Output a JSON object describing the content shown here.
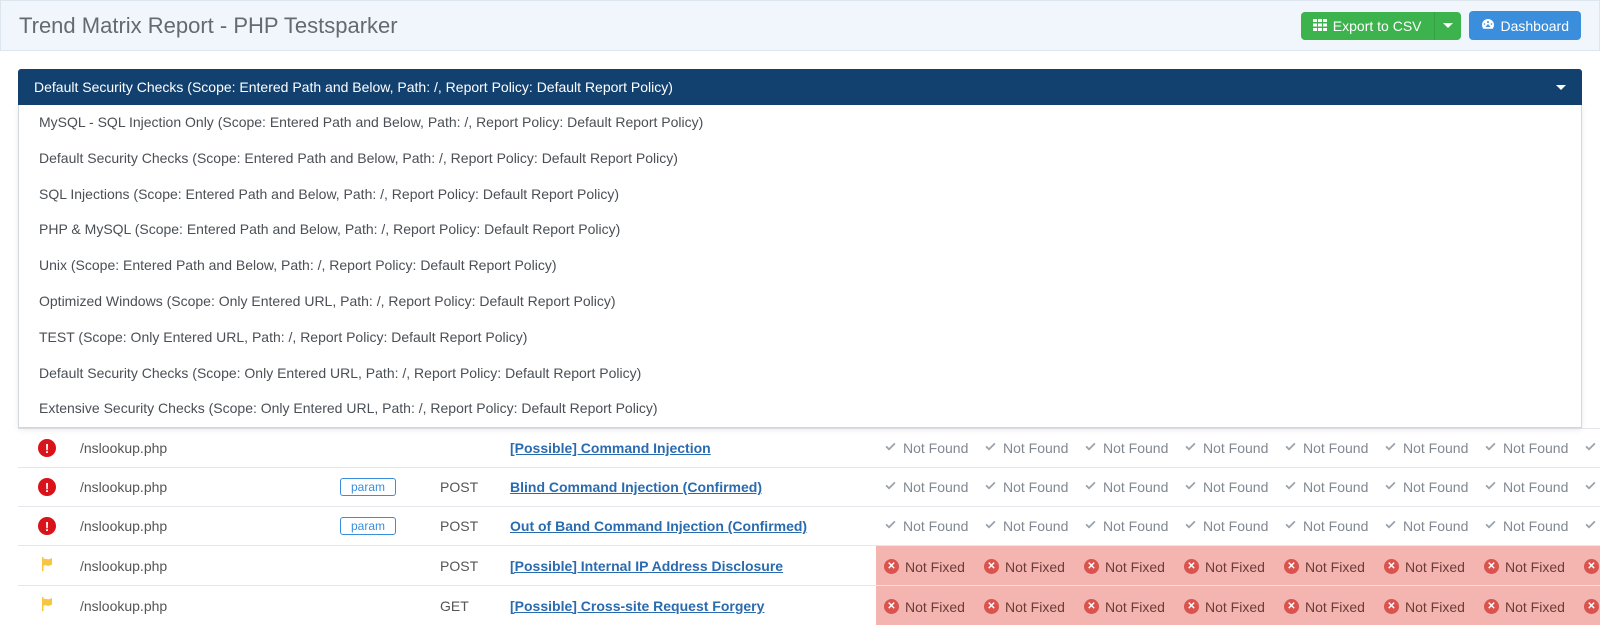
{
  "header": {
    "title": "Trend Matrix Report - PHP Testsparker",
    "export_label": "Export to CSV",
    "dashboard_label": "Dashboard"
  },
  "select": {
    "selected": "Default Security Checks (Scope: Entered Path and Below, Path: /, Report Policy: Default Report Policy)",
    "options": [
      "MySQL - SQL Injection Only (Scope: Entered Path and Below, Path: /, Report Policy: Default Report Policy)",
      "Default Security Checks (Scope: Entered Path and Below, Path: /, Report Policy: Default Report Policy)",
      "SQL Injections (Scope: Entered Path and Below, Path: /, Report Policy: Default Report Policy)",
      "PHP & MySQL (Scope: Entered Path and Below, Path: /, Report Policy: Default Report Policy)",
      "Unix (Scope: Entered Path and Below, Path: /, Report Policy: Default Report Policy)",
      "Optimized Windows (Scope: Only Entered URL, Path: /, Report Policy: Default Report Policy)",
      "TEST (Scope: Only Entered URL, Path: /, Report Policy: Default Report Policy)",
      "Default Security Checks (Scope: Only Entered URL, Path: /, Report Policy: Default Report Policy)",
      "Extensive Security Checks (Scope: Only Entered URL, Path: /, Report Policy: Default Report Policy)"
    ]
  },
  "status_labels": {
    "not_found": "Not Found",
    "not_fixed": "Not Fixed"
  },
  "colors": {
    "header_bg": "#f0f6fb",
    "select_bg": "#124170",
    "btn_green": "#3cb34d",
    "btn_blue": "#3a8edb",
    "link": "#2a6bb0",
    "critical": "#d9131a",
    "notfixed_bg": "#f4b5b0",
    "notfixed_icon": "#d9534f",
    "warn_flag": "#f6c642"
  },
  "rows": [
    {
      "sev": "critical",
      "url": "/nslookup.php",
      "param": "",
      "method": "",
      "vuln": "[Possible] Command Injection",
      "status": "not_found"
    },
    {
      "sev": "critical",
      "url": "/nslookup.php",
      "param": "param",
      "method": "POST",
      "vuln": "Blind Command Injection (Confirmed)",
      "status": "not_found"
    },
    {
      "sev": "critical",
      "url": "/nslookup.php",
      "param": "param",
      "method": "POST",
      "vuln": "Out of Band Command Injection (Confirmed)",
      "status": "not_found"
    },
    {
      "sev": "warn",
      "url": "/nslookup.php",
      "param": "",
      "method": "POST",
      "vuln": "[Possible] Internal IP Address Disclosure",
      "status": "not_fixed"
    },
    {
      "sev": "warn",
      "url": "/nslookup.php",
      "param": "",
      "method": "GET",
      "vuln": "[Possible] Cross-site Request Forgery",
      "status": "not_fixed"
    }
  ],
  "status_column_count": 8
}
